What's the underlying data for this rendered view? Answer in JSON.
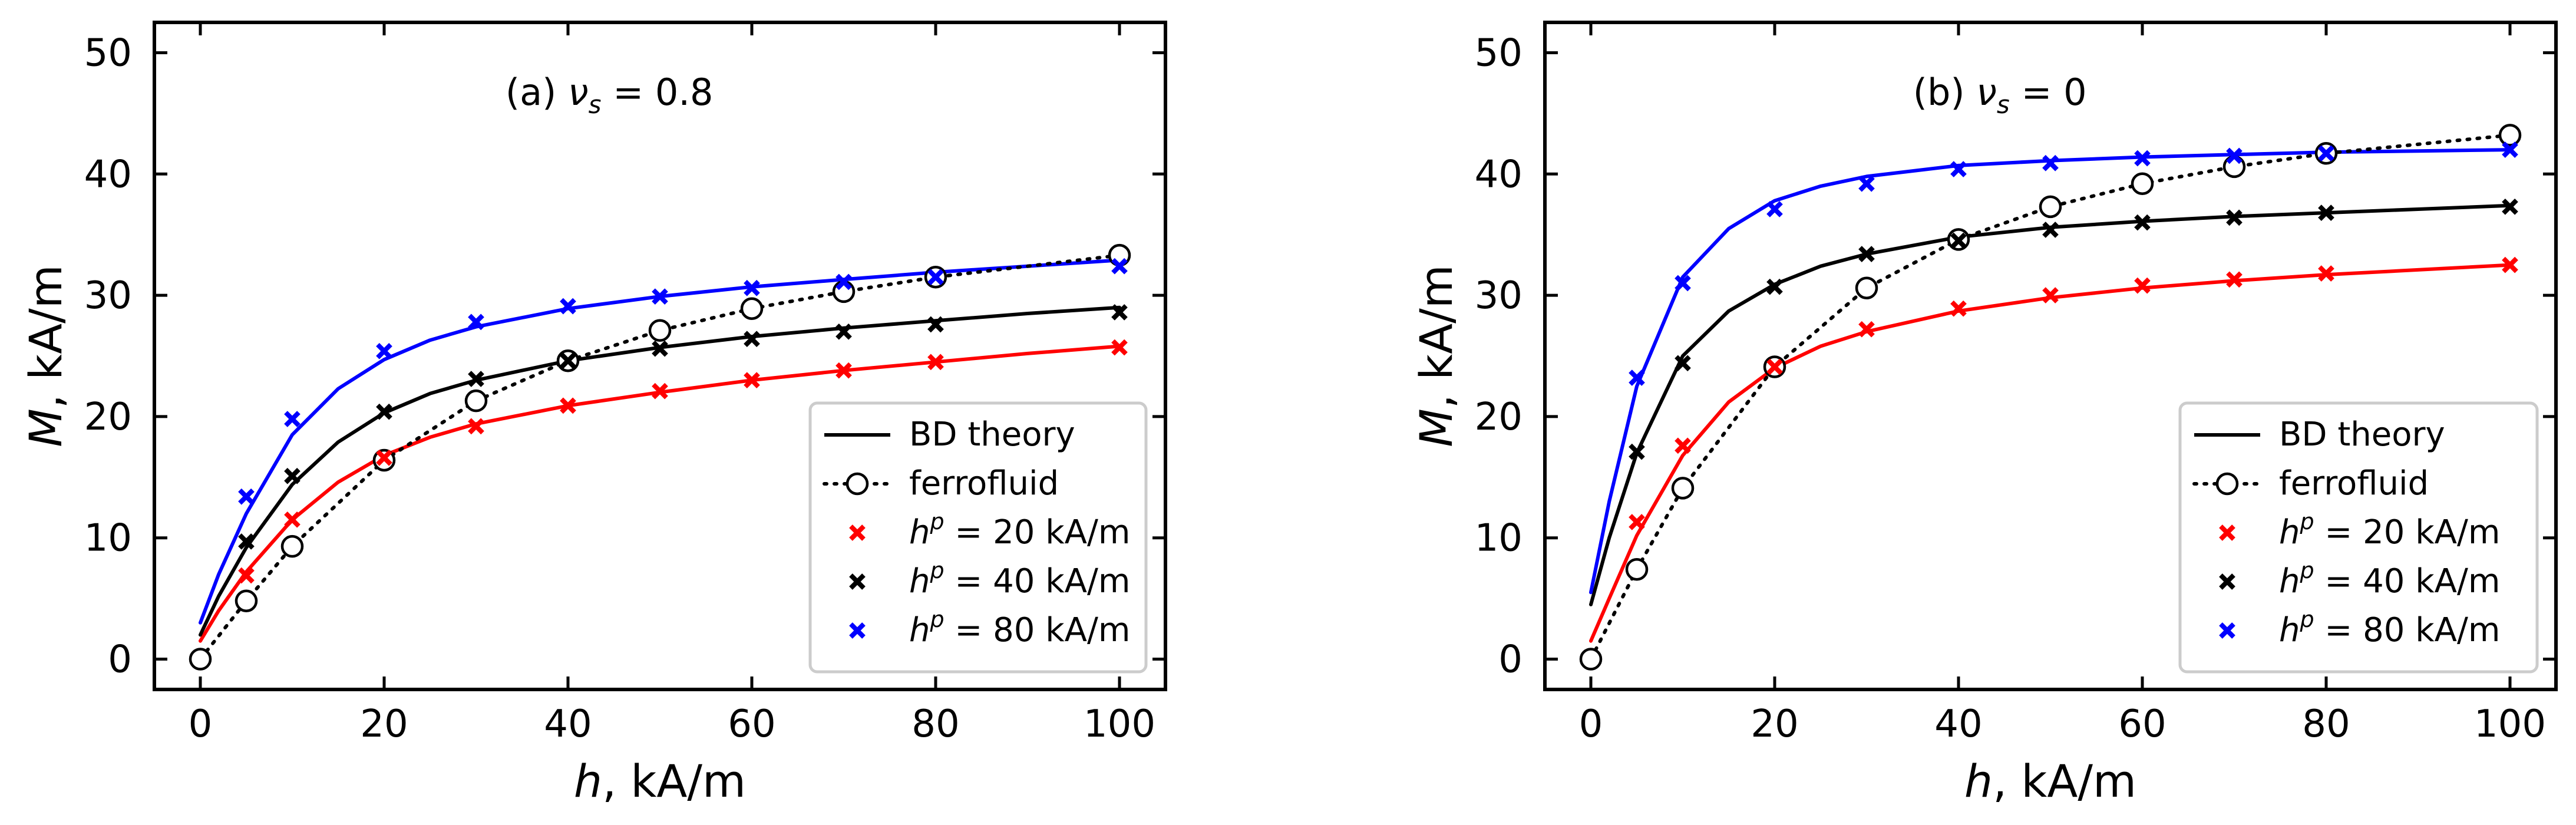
{
  "chart_data": [
    {
      "type": "line",
      "annotation": {
        "prefix": "(a) ",
        "symbol": "ν",
        "subscript": "s",
        "value": " = 0.8"
      },
      "xlabel": {
        "var": "h",
        "unit": ", kA/m"
      },
      "ylabel": {
        "var": "M",
        "unit": ", kA/m"
      },
      "xlim": [
        -5,
        105
      ],
      "ylim": [
        -2.5,
        52.5
      ],
      "xticks": [
        0,
        20,
        40,
        60,
        80,
        100
      ],
      "yticks": [
        0,
        10,
        20,
        30,
        40,
        50
      ],
      "legend_position": "lower-right",
      "series": [
        {
          "id": "theory-red",
          "kind": "theory",
          "color": "#ff0000",
          "x": [
            0,
            2,
            5,
            10,
            15,
            20,
            25,
            30,
            40,
            50,
            60,
            70,
            80,
            90,
            100
          ],
          "y": [
            1.5,
            4.0,
            7.2,
            11.5,
            14.6,
            16.8,
            18.3,
            19.4,
            20.9,
            22.0,
            23.0,
            23.8,
            24.5,
            25.2,
            25.8
          ]
        },
        {
          "id": "theory-black",
          "kind": "theory",
          "color": "#000000",
          "x": [
            0,
            2,
            5,
            10,
            15,
            20,
            25,
            30,
            40,
            50,
            60,
            70,
            80,
            90,
            100
          ],
          "y": [
            2.0,
            5.2,
            9.2,
            14.4,
            17.9,
            20.3,
            21.9,
            23.0,
            24.6,
            25.7,
            26.6,
            27.3,
            27.9,
            28.5,
            29.0
          ]
        },
        {
          "id": "theory-blue",
          "kind": "theory",
          "color": "#0000ff",
          "x": [
            0,
            2,
            5,
            10,
            15,
            20,
            25,
            30,
            40,
            50,
            60,
            70,
            80,
            90,
            100
          ],
          "y": [
            3.0,
            7.0,
            12.0,
            18.5,
            22.3,
            24.7,
            26.3,
            27.4,
            28.9,
            29.9,
            30.7,
            31.3,
            31.9,
            32.4,
            32.9
          ]
        },
        {
          "id": "ferro",
          "kind": "ferro",
          "color": "#000000",
          "x": [
            0,
            5,
            10,
            20,
            30,
            40,
            50,
            60,
            70,
            80,
            100
          ],
          "y": [
            0,
            4.8,
            9.3,
            16.4,
            21.3,
            24.6,
            27.1,
            28.9,
            30.3,
            31.5,
            33.3
          ]
        },
        {
          "id": "hp20",
          "kind": "scatter",
          "color": "#ff0000",
          "x": [
            5,
            10,
            20,
            30,
            40,
            50,
            60,
            70,
            80,
            100
          ],
          "y": [
            6.9,
            11.5,
            16.6,
            19.2,
            20.9,
            22.1,
            23.0,
            23.8,
            24.5,
            25.7
          ]
        },
        {
          "id": "hp40",
          "kind": "scatter",
          "color": "#000000",
          "x": [
            5,
            10,
            20,
            30,
            40,
            50,
            60,
            70,
            80,
            100
          ],
          "y": [
            9.7,
            15.1,
            20.4,
            23.1,
            24.6,
            25.6,
            26.4,
            27.0,
            27.6,
            28.6
          ]
        },
        {
          "id": "hp80",
          "kind": "scatter",
          "color": "#0000ff",
          "x": [
            5,
            10,
            20,
            30,
            40,
            50,
            60,
            70,
            80,
            100
          ],
          "y": [
            13.4,
            19.8,
            25.4,
            27.8,
            29.1,
            29.9,
            30.6,
            31.1,
            31.5,
            32.4
          ]
        }
      ]
    },
    {
      "type": "line",
      "annotation": {
        "prefix": "(b) ",
        "symbol": "ν",
        "subscript": "s",
        "value": " = 0"
      },
      "xlabel": {
        "var": "h",
        "unit": ", kA/m"
      },
      "ylabel": {
        "var": "M",
        "unit": ", kA/m"
      },
      "xlim": [
        -5,
        105
      ],
      "ylim": [
        -2.5,
        52.5
      ],
      "xticks": [
        0,
        20,
        40,
        60,
        80,
        100
      ],
      "yticks": [
        0,
        10,
        20,
        30,
        40,
        50
      ],
      "legend_position": "lower-right",
      "series": [
        {
          "id": "theory-red",
          "kind": "theory",
          "color": "#ff0000",
          "x": [
            0,
            2,
            5,
            10,
            15,
            20,
            25,
            30,
            40,
            50,
            60,
            70,
            80,
            90,
            100
          ],
          "y": [
            1.5,
            5.0,
            10.2,
            16.8,
            21.2,
            24.0,
            25.8,
            27.0,
            28.7,
            29.8,
            30.6,
            31.2,
            31.7,
            32.1,
            32.5
          ]
        },
        {
          "id": "theory-black",
          "kind": "theory",
          "color": "#000000",
          "x": [
            0,
            2,
            5,
            10,
            15,
            20,
            25,
            30,
            40,
            50,
            60,
            70,
            80,
            90,
            100
          ],
          "y": [
            4.5,
            10.0,
            17.0,
            25.0,
            28.7,
            30.9,
            32.4,
            33.4,
            34.8,
            35.6,
            36.1,
            36.5,
            36.8,
            37.1,
            37.4
          ]
        },
        {
          "id": "theory-blue",
          "kind": "theory",
          "color": "#0000ff",
          "x": [
            0,
            2,
            5,
            10,
            15,
            20,
            25,
            30,
            40,
            50,
            60,
            70,
            80,
            90,
            100
          ],
          "y": [
            5.5,
            13.0,
            22.5,
            31.5,
            35.5,
            37.8,
            39.0,
            39.8,
            40.7,
            41.1,
            41.4,
            41.6,
            41.8,
            41.9,
            42.0
          ]
        },
        {
          "id": "ferro",
          "kind": "ferro",
          "color": "#000000",
          "x": [
            0,
            5,
            10,
            20,
            30,
            40,
            50,
            60,
            70,
            80,
            100
          ],
          "y": [
            0,
            7.4,
            14.1,
            24.1,
            30.6,
            34.6,
            37.3,
            39.2,
            40.6,
            41.7,
            43.2
          ]
        },
        {
          "id": "hp20",
          "kind": "scatter",
          "color": "#ff0000",
          "x": [
            5,
            10,
            20,
            30,
            40,
            50,
            60,
            70,
            80,
            100
          ],
          "y": [
            11.3,
            17.6,
            24.1,
            27.2,
            28.9,
            30.0,
            30.8,
            31.3,
            31.8,
            32.5
          ]
        },
        {
          "id": "hp40",
          "kind": "scatter",
          "color": "#000000",
          "x": [
            5,
            10,
            20,
            30,
            40,
            50,
            60,
            70,
            80,
            100
          ],
          "y": [
            17.1,
            24.4,
            30.7,
            33.4,
            34.5,
            35.4,
            36.0,
            36.4,
            36.8,
            37.3
          ]
        },
        {
          "id": "hp80",
          "kind": "scatter",
          "color": "#0000ff",
          "x": [
            5,
            10,
            20,
            30,
            40,
            50,
            60,
            70,
            80,
            100
          ],
          "y": [
            23.2,
            31.0,
            37.1,
            39.2,
            40.4,
            40.9,
            41.3,
            41.5,
            41.7,
            42.0
          ]
        }
      ]
    }
  ],
  "legend": {
    "theory_label": "BD theory",
    "ferro_label": "ferrofluid",
    "hp_entries": [
      {
        "color": "#ff0000",
        "var": "h",
        "sup": "p",
        "value": " = 20 kA/m"
      },
      {
        "color": "#000000",
        "var": "h",
        "sup": "p",
        "value": " = 40 kA/m"
      },
      {
        "color": "#0000ff",
        "var": "h",
        "sup": "p",
        "value": " = 80 kA/m"
      }
    ]
  }
}
